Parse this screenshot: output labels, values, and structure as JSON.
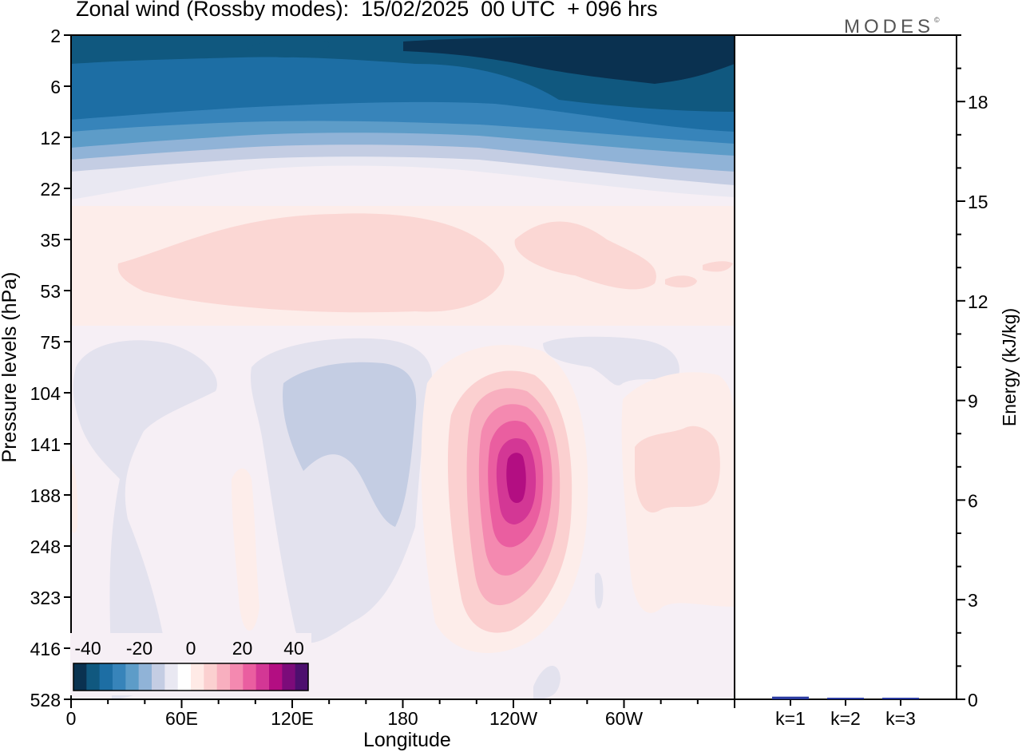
{
  "title": "Zonal wind (Rossby modes):  15/02/2025  00 UTC  + 096 hrs",
  "brand": "MODES",
  "brand_mark": "©",
  "chart_data": [
    {
      "type": "heatmap",
      "xlabel": "Longitude",
      "ylabel": "Pressure levels (hPa)",
      "x_ticks": [
        "0",
        "60E",
        "120E",
        "180",
        "120W",
        "60W"
      ],
      "y_ticks": [
        "2",
        "6",
        "12",
        "22",
        "35",
        "53",
        "75",
        "104",
        "141",
        "188",
        "248",
        "323",
        "416",
        "528"
      ],
      "colorbar": {
        "labels": [
          "-40",
          "-20",
          "0",
          "20",
          "40"
        ],
        "colors": [
          "#0a3150",
          "#10587f",
          "#1d6ea4",
          "#3784ba",
          "#5d9cc8",
          "#90b3d7",
          "#c4cde3",
          "#e9e8f2",
          "#ffffff",
          "#ffeae6",
          "#fbd0d0",
          "#f8afbf",
          "#f489b0",
          "#ea5ea0",
          "#d33795",
          "#b30e82",
          "#7c0b7a",
          "#4d0f6e"
        ],
        "background_near_zero": "#f6eff5",
        "background_positive": "#fdedea"
      },
      "features": [
        {
          "name": "stratospheric easterlies",
          "lon_range": [
            0,
            360
          ],
          "p_range": [
            2,
            22
          ],
          "min_value": -40
        },
        {
          "name": "positive band",
          "lon_range": [
            20,
            350
          ],
          "p_range": [
            30,
            60
          ],
          "max_value": 10
        },
        {
          "name": "negative cell west",
          "lon_range": [
            0,
            60
          ],
          "p_range": [
            75,
            528
          ],
          "min_value": -10
        },
        {
          "name": "negative cell central",
          "lon_range": [
            90,
            170
          ],
          "p_range": [
            90,
            416
          ],
          "min_value": -10
        },
        {
          "name": "jet maximum",
          "lon": 240,
          "pressure": 165,
          "max_value": 40
        },
        {
          "name": "weak negative",
          "lon_range": [
            250,
            300
          ],
          "p_range": [
            75,
            120
          ],
          "min_value": -10
        },
        {
          "name": "positive east",
          "lon_range": [
            295,
            360
          ],
          "p_range": [
            120,
            323
          ],
          "max_value": 10
        }
      ]
    },
    {
      "type": "bar",
      "categories": [
        "k=1",
        "k=2",
        "k=3"
      ],
      "values": [
        0.08,
        0.04,
        0.03
      ],
      "ylabel": "Energy (kJ/kg)",
      "ylim": [
        0,
        20
      ],
      "y_ticks": [
        0,
        3,
        6,
        9,
        12,
        15,
        18
      ],
      "color": "#2a3aa0"
    }
  ]
}
